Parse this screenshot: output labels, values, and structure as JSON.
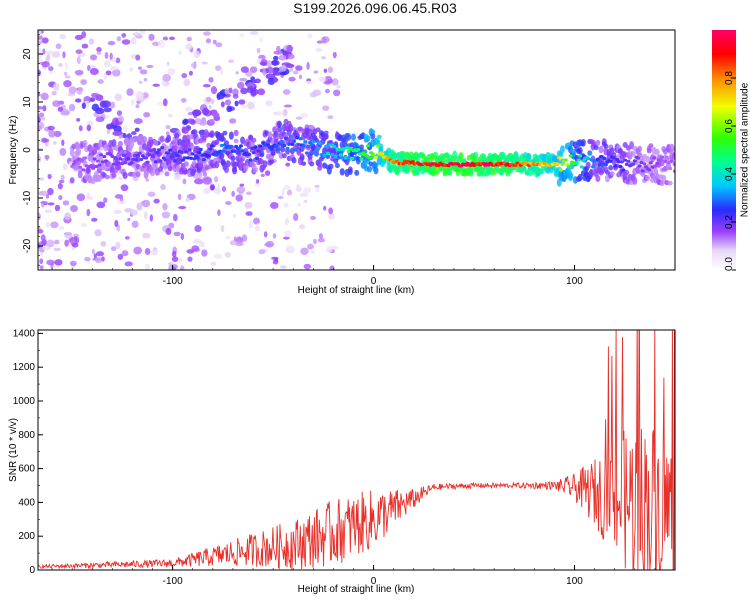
{
  "title": "S199.2026.096.06.45.R03",
  "chart_data": [
    {
      "type": "heatmap",
      "xlabel": "Height of straight line (km)",
      "ylabel": "Frequency (Hz)",
      "xlim": [
        -167,
        150
      ],
      "ylim": [
        -25,
        25
      ],
      "xticks": [
        -100,
        0,
        100
      ],
      "yticks": [
        -20,
        -10,
        0,
        10,
        20
      ],
      "colorbar": {
        "label": "Normalized spectral amplitude",
        "range": [
          0,
          1
        ],
        "ticks": [
          "0.0",
          "0.2",
          "0.4",
          "0.6",
          "0.8"
        ],
        "tick_values": [
          0,
          0.2,
          0.4,
          0.6,
          0.8
        ]
      },
      "ridge": {
        "description_x": [
          -150,
          -130,
          -110,
          -90,
          -75,
          -60,
          -45,
          -35,
          -25,
          -15,
          -5,
          0,
          10,
          30,
          50,
          70,
          90,
          110,
          130,
          145
        ],
        "frequency_hz": [
          -3,
          -2,
          -1,
          -1,
          0,
          -1,
          2,
          1,
          0,
          -1,
          -1,
          0,
          -2.5,
          -3,
          -3,
          -3,
          -3,
          -2,
          -3,
          -3
        ],
        "amplitude": [
          0.15,
          0.2,
          0.22,
          0.25,
          0.3,
          0.25,
          0.3,
          0.3,
          0.35,
          0.45,
          0.55,
          0.6,
          0.9,
          1.0,
          1.0,
          0.9,
          0.75,
          0.3,
          0.2,
          0.15
        ]
      }
    },
    {
      "type": "line",
      "xlabel": "Height of straight line (km)",
      "ylabel": "SNR (10 * v/v)",
      "xlim": [
        -167,
        150
      ],
      "ylim": [
        0,
        1420
      ],
      "xticks": [
        -100,
        0,
        100
      ],
      "yticks": [
        0,
        200,
        400,
        600,
        800,
        1000,
        1200,
        1400
      ],
      "color": "#e8302a",
      "envelope_x": [
        -167,
        -100,
        -80,
        -60,
        -40,
        -20,
        0,
        20,
        30,
        50,
        70,
        90,
        100,
        110,
        120,
        130,
        140,
        150
      ],
      "envelope_mean": [
        20,
        40,
        80,
        120,
        150,
        220,
        300,
        420,
        490,
        500,
        500,
        500,
        490,
        460,
        420,
        400,
        380,
        360
      ],
      "envelope_spread": [
        10,
        25,
        60,
        100,
        150,
        200,
        180,
        60,
        20,
        15,
        15,
        25,
        80,
        200,
        350,
        500,
        500,
        400
      ]
    }
  ]
}
